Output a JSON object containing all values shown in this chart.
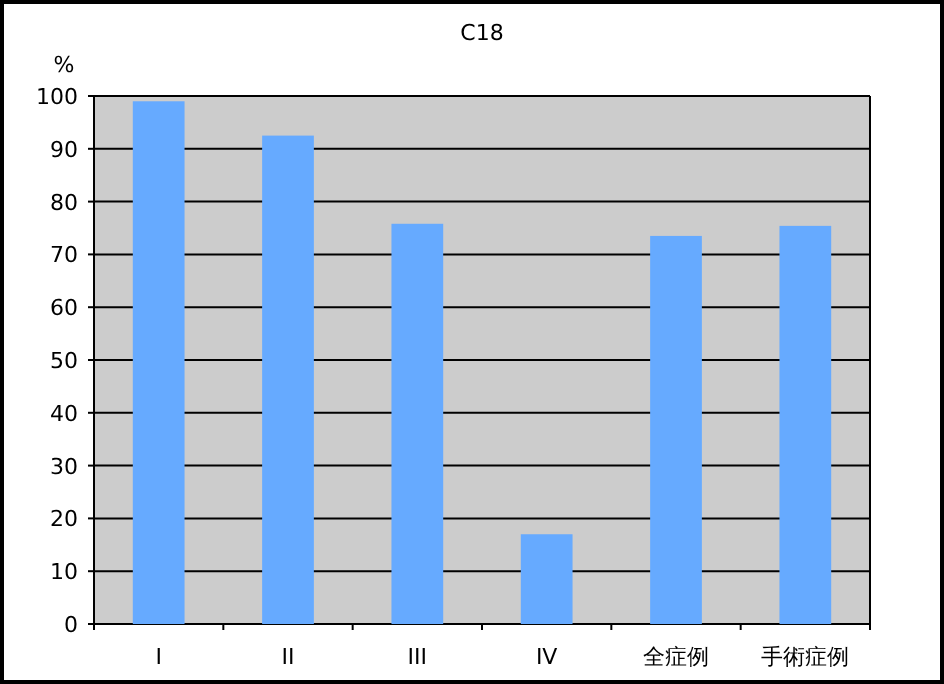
{
  "chart_data": {
    "type": "bar",
    "title": "C18",
    "ylabel": "%",
    "categories": [
      "I",
      "II",
      "III",
      "IV",
      "全症例",
      "手術症例"
    ],
    "values": [
      99.0,
      92.5,
      75.8,
      17.0,
      73.5,
      75.4
    ],
    "color": "#66aaff",
    "ylim": [
      0,
      100
    ],
    "yticks": [
      0,
      10,
      20,
      30,
      40,
      50,
      60,
      70,
      80,
      90,
      100
    ],
    "grid": "y"
  }
}
